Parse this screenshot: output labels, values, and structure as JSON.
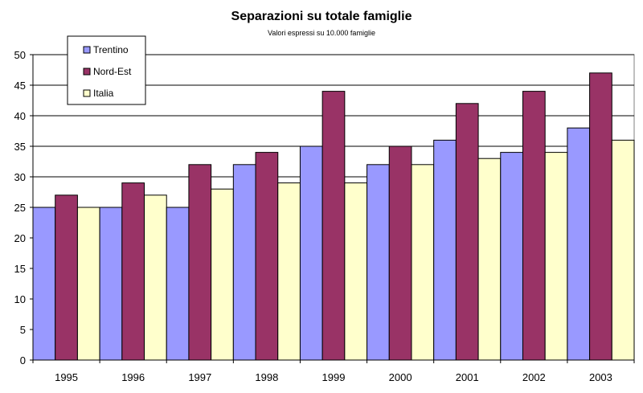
{
  "chart_data": {
    "type": "bar",
    "title": "Separazioni su totale famiglie",
    "subtitle": "Valori espressi su 10.000 famiglie",
    "categories": [
      "1995",
      "1996",
      "1997",
      "1998",
      "1999",
      "2000",
      "2001",
      "2002",
      "2003"
    ],
    "series": [
      {
        "name": "Trentino",
        "color": "#9999ff",
        "values": [
          25,
          25,
          25,
          32,
          35,
          32,
          36,
          34,
          38
        ]
      },
      {
        "name": "Nord-Est",
        "color": "#993366",
        "values": [
          27,
          29,
          32,
          34,
          44,
          35,
          42,
          44,
          47
        ]
      },
      {
        "name": "Italia",
        "color": "#ffffcc",
        "values": [
          25,
          27,
          28,
          29,
          29,
          32,
          33,
          34,
          36
        ]
      }
    ],
    "ylim": [
      0,
      50
    ],
    "yticks": [
      0,
      5,
      10,
      15,
      20,
      25,
      30,
      35,
      40,
      45,
      50
    ],
    "grid": true,
    "legend": "top-left"
  }
}
